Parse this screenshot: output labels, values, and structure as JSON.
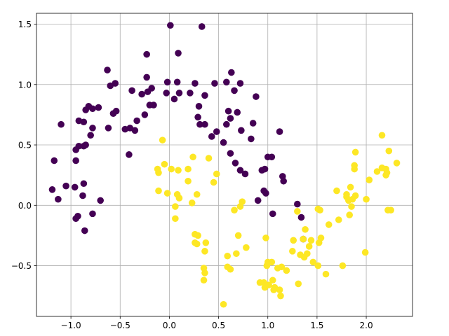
{
  "chart_data": {
    "type": "scatter",
    "title": "",
    "xlabel": "",
    "ylabel": "",
    "xlim": [
      -1.35,
      2.47
    ],
    "ylim": [
      -0.92,
      1.59
    ],
    "grid": true,
    "legend": "none",
    "x_ticks": [
      -1.0,
      -0.5,
      0.0,
      0.5,
      1.0,
      1.5,
      2.0
    ],
    "x_tick_labels": [
      "−1.0",
      "−0.5",
      "0.0",
      "0.5",
      "1.0",
      "1.5",
      "2.0"
    ],
    "y_ticks": [
      -0.5,
      0.0,
      0.5,
      1.0,
      1.5
    ],
    "y_tick_labels": [
      "−0.5",
      "0.0",
      "0.5",
      "1.0",
      "1.5"
    ],
    "series": [
      {
        "color": "#440154",
        "points": [
          [
            0.01,
            1.49
          ],
          [
            0.33,
            1.48
          ],
          [
            -0.23,
            1.25
          ],
          [
            0.09,
            1.26
          ],
          [
            -0.63,
            1.12
          ],
          [
            0.63,
            1.1
          ],
          [
            -0.55,
            1.01
          ],
          [
            -0.6,
            0.99
          ],
          [
            -0.23,
            1.06
          ],
          [
            -0.02,
            1.02
          ],
          [
            0.08,
            1.02
          ],
          [
            0.46,
            1.01
          ],
          [
            0.58,
            1.02
          ],
          [
            0.72,
            1.01
          ],
          [
            0.26,
            1.01
          ],
          [
            -0.38,
            0.95
          ],
          [
            -0.28,
            0.92
          ],
          [
            -0.22,
            0.94
          ],
          [
            -0.18,
            0.97
          ],
          [
            -0.03,
            0.93
          ],
          [
            0.1,
            0.93
          ],
          [
            0.21,
            0.93
          ],
          [
            0.36,
            0.91
          ],
          [
            0.66,
            0.95
          ],
          [
            0.88,
            0.9
          ],
          [
            -0.2,
            0.83
          ],
          [
            -0.16,
            0.83
          ],
          [
            0.05,
            0.88
          ],
          [
            0.3,
            0.82
          ],
          [
            -0.85,
            0.79
          ],
          [
            -0.82,
            0.82
          ],
          [
            -0.78,
            0.8
          ],
          [
            -0.72,
            0.81
          ],
          [
            -0.57,
            0.76
          ],
          [
            -0.54,
            0.78
          ],
          [
            0.6,
            0.78
          ],
          [
            0.69,
            0.77
          ],
          [
            -0.87,
            0.69
          ],
          [
            -0.92,
            0.7
          ],
          [
            -0.78,
            0.64
          ],
          [
            -0.62,
            0.64
          ],
          [
            -0.25,
            0.75
          ],
          [
            -0.33,
            0.7
          ],
          [
            0.29,
            0.73
          ],
          [
            0.62,
            0.72
          ],
          [
            -1.1,
            0.67
          ],
          [
            -0.45,
            0.63
          ],
          [
            -0.4,
            0.64
          ],
          [
            -0.35,
            0.62
          ],
          [
            0.31,
            0.67
          ],
          [
            0.36,
            0.67
          ],
          [
            0.58,
            0.67
          ],
          [
            0.73,
            0.62
          ],
          [
            0.85,
            0.68
          ],
          [
            0.48,
            0.61
          ],
          [
            0.43,
            0.57
          ],
          [
            1.12,
            0.61
          ],
          [
            -0.8,
            0.58
          ],
          [
            0.55,
            0.52
          ],
          [
            0.83,
            0.55
          ],
          [
            -0.87,
            0.49
          ],
          [
            -0.92,
            0.49
          ],
          [
            -0.95,
            0.46
          ],
          [
            -0.85,
            0.5
          ],
          [
            -0.41,
            0.42
          ],
          [
            0.62,
            0.43
          ],
          [
            1.0,
            0.4
          ],
          [
            1.04,
            0.4
          ],
          [
            -0.95,
            0.37
          ],
          [
            0.67,
            0.35
          ],
          [
            0.72,
            0.29
          ],
          [
            0.77,
            0.26
          ],
          [
            0.94,
            0.29
          ],
          [
            0.97,
            0.3
          ],
          [
            -1.17,
            0.37
          ],
          [
            1.15,
            0.24
          ],
          [
            1.16,
            0.2
          ],
          [
            -1.05,
            0.16
          ],
          [
            -0.96,
            0.15
          ],
          [
            -0.87,
            0.18
          ],
          [
            -1.19,
            0.13
          ],
          [
            0.96,
            0.12
          ],
          [
            0.98,
            0.1
          ],
          [
            -0.88,
            0.08
          ],
          [
            -1.13,
            0.05
          ],
          [
            -0.7,
            0.04
          ],
          [
            0.9,
            0.04
          ],
          [
            1.3,
            0.01
          ],
          [
            -0.78,
            -0.07
          ],
          [
            -0.93,
            -0.09
          ],
          [
            -0.95,
            -0.11
          ],
          [
            1.05,
            -0.07
          ],
          [
            1.34,
            -0.1
          ],
          [
            -0.86,
            -0.21
          ],
          [
            1.36,
            -0.28
          ]
        ]
      },
      {
        "color": "#fde725",
        "points": [
          [
            -0.07,
            0.54
          ],
          [
            0.24,
            0.4
          ],
          [
            0.4,
            0.39
          ],
          [
            -0.11,
            0.27
          ],
          [
            -0.05,
            0.34
          ],
          [
            0.02,
            0.3
          ],
          [
            0.09,
            0.29
          ],
          [
            0.19,
            0.3
          ],
          [
            -0.12,
            0.3
          ],
          [
            0.48,
            0.26
          ],
          [
            0.19,
            0.2
          ],
          [
            0.45,
            0.19
          ],
          [
            -0.11,
            0.12
          ],
          [
            -0.02,
            0.1
          ],
          [
            0.08,
            0.09
          ],
          [
            0.1,
            0.06
          ],
          [
            0.28,
            0.09
          ],
          [
            0.23,
            0.02
          ],
          [
            0.06,
            -0.01
          ],
          [
            0.06,
            -0.11
          ],
          [
            0.26,
            -0.24
          ],
          [
            0.29,
            -0.25
          ],
          [
            0.26,
            -0.31
          ],
          [
            0.28,
            -0.32
          ],
          [
            0.37,
            -0.31
          ],
          [
            0.36,
            -0.38
          ],
          [
            0.35,
            -0.52
          ],
          [
            0.36,
            -0.56
          ],
          [
            0.35,
            -0.62
          ],
          [
            0.59,
            -0.42
          ],
          [
            0.59,
            -0.51
          ],
          [
            0.62,
            -0.53
          ],
          [
            0.68,
            -0.4
          ],
          [
            0.7,
            -0.25
          ],
          [
            0.78,
            -0.35
          ],
          [
            0.55,
            -0.82
          ],
          [
            0.66,
            -0.04
          ],
          [
            0.72,
            -0.01
          ],
          [
            0.74,
            0.03
          ],
          [
            0.92,
            -0.64
          ],
          [
            0.96,
            -0.64
          ],
          [
            0.97,
            -0.68
          ],
          [
            0.98,
            -0.27
          ],
          [
            1.0,
            -0.47
          ],
          [
            1.01,
            -0.66
          ],
          [
            1.04,
            -0.47
          ],
          [
            1.05,
            -0.62
          ],
          [
            1.06,
            -0.7
          ],
          [
            1.07,
            -0.68
          ],
          [
            1.1,
            -0.52
          ],
          [
            1.12,
            -0.7
          ],
          [
            1.13,
            -0.75
          ],
          [
            1.14,
            -0.51
          ],
          [
            1.19,
            -0.54
          ],
          [
            1.25,
            -0.38
          ],
          [
            1.26,
            -0.29
          ],
          [
            1.31,
            -0.65
          ],
          [
            1.33,
            -0.41
          ],
          [
            1.36,
            -0.28
          ],
          [
            1.37,
            -0.43
          ],
          [
            1.38,
            -0.2
          ],
          [
            1.4,
            -0.4
          ],
          [
            1.42,
            -0.34
          ],
          [
            1.44,
            -0.29
          ],
          [
            1.46,
            -0.47
          ],
          [
            1.51,
            -0.5
          ],
          [
            1.52,
            -0.31
          ],
          [
            1.54,
            -0.27
          ],
          [
            1.51,
            -0.03
          ],
          [
            1.53,
            -0.04
          ],
          [
            1.59,
            -0.57
          ],
          [
            1.62,
            -0.16
          ],
          [
            1.7,
            0.12
          ],
          [
            1.72,
            -0.12
          ],
          [
            1.76,
            -0.5
          ],
          [
            1.8,
            0.07
          ],
          [
            1.8,
            0.09
          ],
          [
            1.82,
            0.04
          ],
          [
            1.83,
            -0.08
          ],
          [
            1.84,
            0.15
          ],
          [
            1.85,
            -0.01
          ],
          [
            1.86,
            0.05
          ],
          [
            1.88,
            0.3
          ],
          [
            1.88,
            0.33
          ],
          [
            1.89,
            0.44
          ],
          [
            1.89,
            0.08
          ],
          [
            1.99,
            -0.39
          ],
          [
            2.0,
            0.05
          ],
          [
            2.03,
            0.21
          ],
          [
            2.11,
            0.28
          ],
          [
            2.16,
            0.31
          ],
          [
            2.16,
            0.58
          ],
          [
            2.2,
            0.3
          ],
          [
            2.2,
            0.25
          ],
          [
            2.21,
            0.27
          ],
          [
            2.22,
            -0.04
          ],
          [
            2.23,
            0.45
          ],
          [
            2.25,
            -0.04
          ],
          [
            2.31,
            0.35
          ],
          [
            0.99,
            -0.5
          ],
          [
            1.3,
            -0.05
          ]
        ]
      }
    ]
  }
}
